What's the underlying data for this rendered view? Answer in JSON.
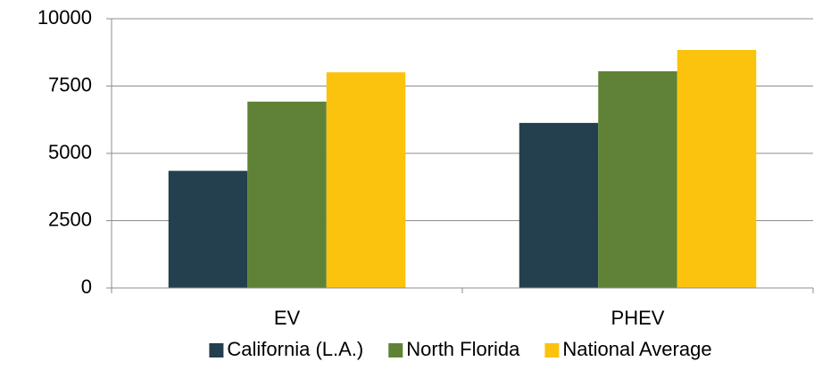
{
  "chart_data": {
    "type": "bar",
    "categories": [
      "EV",
      "PHEV"
    ],
    "series": [
      {
        "name": "California (L.A.)",
        "color": "#243f4d",
        "values": [
          4350,
          6130
        ]
      },
      {
        "name": "North Florida",
        "color": "#5f8237",
        "values": [
          6920,
          8050
        ]
      },
      {
        "name": "National Average",
        "color": "#fcc30e",
        "values": [
          8010,
          8840
        ]
      }
    ],
    "ylim": [
      0,
      10000
    ],
    "yticks": [
      0,
      2500,
      5000,
      7500,
      10000
    ],
    "grid": true,
    "legend": "bottom"
  }
}
